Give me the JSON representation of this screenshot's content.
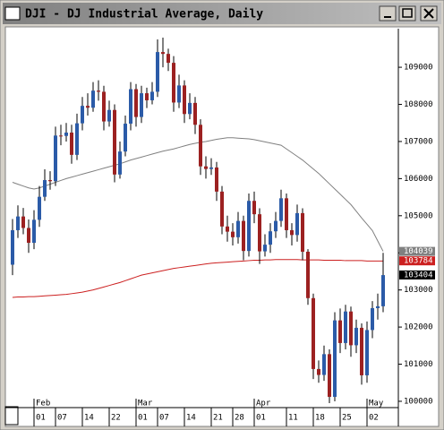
{
  "chart_data": {
    "type": "candlestick",
    "title": "DJI - DJ Industrial Average, Daily",
    "categories": [
      null,
      null,
      null,
      null,
      null,
      "01",
      null,
      null,
      null,
      "07",
      null,
      null,
      null,
      null,
      "14",
      null,
      null,
      null,
      null,
      "22",
      null,
      null,
      null,
      null,
      "01",
      null,
      null,
      null,
      "07",
      null,
      null,
      null,
      null,
      "14",
      null,
      null,
      null,
      null,
      "21",
      null,
      null,
      null,
      "28",
      null,
      null,
      null,
      "01",
      null,
      null,
      null,
      null,
      null,
      "11",
      null,
      null,
      null,
      null,
      "18",
      null,
      null,
      null,
      null,
      "25",
      null,
      null,
      null,
      null,
      "02",
      null,
      null
    ],
    "months": [
      null,
      null,
      null,
      null,
      null,
      "Feb",
      null,
      null,
      null,
      null,
      null,
      null,
      null,
      null,
      null,
      null,
      null,
      null,
      null,
      null,
      null,
      null,
      null,
      null,
      "Mar",
      null,
      null,
      null,
      null,
      null,
      null,
      null,
      null,
      null,
      null,
      null,
      null,
      null,
      null,
      null,
      null,
      null,
      null,
      null,
      null,
      null,
      "Apr",
      null,
      null,
      null,
      null,
      null,
      null,
      null,
      null,
      null,
      null,
      null,
      null,
      null,
      null,
      null,
      null,
      null,
      null,
      null,
      null,
      "May",
      null,
      null
    ],
    "open": [
      10368,
      10461,
      10498,
      10467,
      10427,
      10489,
      10551,
      10596,
      10593,
      10716,
      10715,
      10724,
      10664,
      10749,
      10796,
      10791,
      10837,
      10834,
      10754,
      10785,
      10611,
      10673,
      10748,
      10841,
      10766,
      10830,
      10811,
      10834,
      10941,
      10936,
      10912,
      10805,
      10851,
      10774,
      10804,
      10745,
      10633,
      10626,
      10630,
      10565,
      10471,
      10457,
      10442,
      10486,
      10405,
      10540,
      10504,
      10404,
      10422,
      10458,
      10486,
      10547,
      10461,
      10448,
      10507,
      10403,
      10278,
      10087,
      10071,
      10127,
      10012,
      10218,
      10157,
      10242,
      10151,
      10198,
      10070,
      10192,
      10251,
      10256
    ],
    "high": [
      10491,
      10528,
      10521,
      10490,
      10515,
      10580,
      10625,
      10620,
      10740,
      10745,
      10750,
      10745,
      10775,
      10820,
      10830,
      10860,
      10865,
      10850,
      10810,
      10800,
      10700,
      10770,
      10860,
      10855,
      10850,
      10845,
      10860,
      10975,
      10980,
      10950,
      10930,
      10880,
      10865,
      10830,
      10820,
      10760,
      10660,
      10655,
      10645,
      10580,
      10500,
      10480,
      10510,
      10500,
      10560,
      10565,
      10520,
      10450,
      10480,
      10510,
      10570,
      10560,
      10480,
      10530,
      10520,
      10410,
      10290,
      10110,
      10150,
      10140,
      10240,
      10250,
      10260,
      10255,
      10220,
      10210,
      10215,
      10270,
      10290,
      10400
    ],
    "low": [
      10340,
      10440,
      10450,
      10400,
      10410,
      10470,
      10540,
      10570,
      10580,
      10690,
      10700,
      10640,
      10650,
      10730,
      10770,
      10780,
      10810,
      10730,
      10740,
      10590,
      10600,
      10660,
      10730,
      10740,
      10750,
      10790,
      10800,
      10820,
      10900,
      10890,
      10780,
      10790,
      10750,
      10760,
      10720,
      10610,
      10600,
      10610,
      10540,
      10450,
      10430,
      10420,
      10425,
      10380,
      10390,
      10480,
      10370,
      10390,
      10400,
      10440,
      10470,
      10440,
      10420,
      10430,
      10380,
      10260,
      10060,
      10050,
      10055,
      9995,
      10000,
      10130,
      10140,
      10120,
      10130,
      10045,
      10050,
      10170,
      10220,
      10240
    ],
    "close": [
      10461,
      10498,
      10467,
      10427,
      10489,
      10551,
      10596,
      10593,
      10716,
      10715,
      10724,
      10664,
      10749,
      10796,
      10791,
      10837,
      10834,
      10754,
      10785,
      10611,
      10673,
      10748,
      10841,
      10766,
      10830,
      10811,
      10834,
      10941,
      10936,
      10912,
      10805,
      10851,
      10774,
      10804,
      10745,
      10633,
      10626,
      10630,
      10565,
      10471,
      10457,
      10442,
      10486,
      10405,
      10540,
      10504,
      10404,
      10422,
      10458,
      10486,
      10547,
      10461,
      10448,
      10507,
      10403,
      10278,
      10087,
      10071,
      10127,
      10012,
      10218,
      10157,
      10242,
      10151,
      10198,
      10070,
      10192,
      10251,
      10256,
      10340
    ],
    "up_color": "#2b5ba8",
    "down_color": "#9c2121",
    "lines": [
      {
        "color": "#808080",
        "values": [
          10590,
          10585,
          10580,
          10575,
          10572,
          10575,
          10580,
          10585,
          10590,
          10595,
          10600,
          10604,
          10608,
          10612,
          10616,
          10620,
          10624,
          10628,
          10632,
          10636,
          10640,
          10645,
          10650,
          10654,
          10658,
          10662,
          10666,
          10670,
          10674,
          10677,
          10680,
          10684,
          10688,
          10692,
          10695,
          10698,
          10700,
          10703,
          10706,
          10708,
          10710,
          10710,
          10709,
          10708,
          10707,
          10705,
          10702,
          10699,
          10696,
          10693,
          10690,
          10680,
          10670,
          10660,
          10650,
          10638,
          10626,
          10614,
          10600,
          10586,
          10572,
          10558,
          10544,
          10530,
          10512,
          10494,
          10477,
          10460,
          10432,
          10404
        ]
      },
      {
        "color": "#cc2020",
        "values": [
          10280,
          10281,
          10281,
          10282,
          10282,
          10283,
          10284,
          10285,
          10286,
          10287,
          10288,
          10290,
          10292,
          10294,
          10297,
          10300,
          10304,
          10308,
          10312,
          10316,
          10320,
          10325,
          10330,
          10335,
          10340,
          10343,
          10346,
          10349,
          10352,
          10355,
          10358,
          10360,
          10362,
          10364,
          10366,
          10368,
          10370,
          10372,
          10373,
          10374,
          10375,
          10376,
          10377,
          10378,
          10379,
          10380,
          10380,
          10381,
          10381,
          10382,
          10382,
          10382,
          10382,
          10382,
          10381,
          10381,
          10381,
          10381,
          10380,
          10380,
          10380,
          10380,
          10379,
          10379,
          10379,
          10379,
          10378,
          10378,
          10378,
          10378
        ]
      }
    ],
    "price_markers": [
      {
        "value": 10403.9,
        "label": "104039",
        "color": "#808080"
      },
      {
        "value": 10378.4,
        "label": "103784",
        "color": "#cc2020"
      },
      {
        "value": 10340.4,
        "label": "103404",
        "color": "#000000"
      }
    ],
    "ylim": [
      9983,
      11004
    ],
    "yticks": [
      {
        "value": 10000,
        "label": "100000"
      },
      {
        "value": 10100,
        "label": "101000"
      },
      {
        "value": 10200,
        "label": "102000"
      },
      {
        "value": 10300,
        "label": "103000"
      },
      {
        "value": 10400,
        "label": "104000"
      },
      {
        "value": 10500,
        "label": "105000"
      },
      {
        "value": 10600,
        "label": "106000"
      },
      {
        "value": 10700,
        "label": "107000"
      },
      {
        "value": 10800,
        "label": "108000"
      },
      {
        "value": 10900,
        "label": "109000"
      }
    ]
  }
}
